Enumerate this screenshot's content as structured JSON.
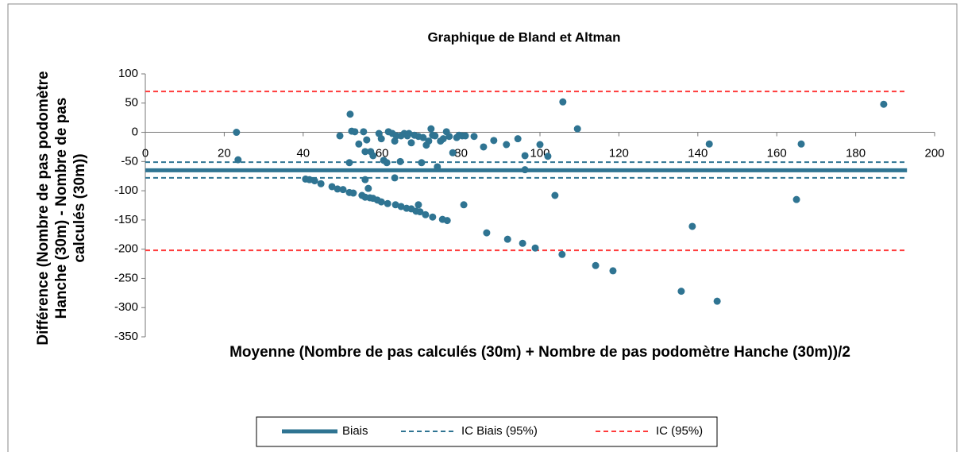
{
  "chart_data": {
    "type": "scatter",
    "title": "Graphique de Bland et Altman",
    "xlabel": "Moyenne (Nombre de pas calculés (30m) + Nombre de pas podomètre Hanche (30m))/2",
    "ylabel": "Différence (Nombre de pas podomètre Hanche (30m) - Nombre de pas calculés (30m))",
    "xlim": [
      0,
      200
    ],
    "xticks": [
      0,
      20,
      40,
      60,
      80,
      100,
      120,
      140,
      160,
      180,
      200
    ],
    "ylim": [
      -350,
      100
    ],
    "yticks": [
      -350,
      -300,
      -250,
      -200,
      -150,
      -100,
      -50,
      0,
      50,
      100
    ],
    "points": {
      "color": "#2f7492",
      "x": [
        23.1,
        23.5,
        51.9,
        51.7,
        49.3,
        52.3,
        53.1,
        54.1,
        55.3,
        56.1,
        55.7,
        57.1,
        57.7,
        59.2,
        59.8,
        60.4,
        61.2,
        61.6,
        62.6,
        63.2,
        63.6,
        63.2,
        64.6,
        64.8,
        65.6,
        66.4,
        66.8,
        67.4,
        68.2,
        69.2,
        70,
        70.4,
        71.2,
        71.8,
        72.4,
        72.8,
        73.4,
        74,
        74.8,
        75.5,
        76.3,
        77,
        77.9,
        78.9,
        79.5,
        80.3,
        81.1,
        83.3,
        85.7,
        88.3,
        91.5,
        94.4,
        96.2,
        96.2,
        100,
        102,
        103.8,
        105.8,
        109.5,
        40.6,
        41.6,
        42.9,
        44.5,
        47.3,
        48.7,
        50.1,
        51.7,
        52.7,
        54.9,
        55.7,
        56.9,
        57.7,
        58.8,
        59.8,
        61.4,
        63.4,
        64.8,
        66.2,
        67.4,
        68.6,
        69.6,
        69.2,
        71,
        72.8,
        75.3,
        76.5,
        56.5,
        55.7,
        80.7,
        86.5,
        91.8,
        95.6,
        98.8,
        105.6,
        114.1,
        118.5,
        142.9,
        166.2,
        165,
        138.6,
        135.8,
        144.9,
        187.1
      ],
      "y": [
        0,
        -47,
        31,
        -52,
        -6,
        2,
        1,
        -20,
        1,
        -13,
        -33,
        -33,
        -40,
        -2,
        -11,
        -48,
        -52,
        1,
        -2,
        -15,
        -6,
        -78,
        -50,
        -6,
        -2,
        -6,
        -2,
        -18,
        -5,
        -7,
        -52,
        -9,
        -22,
        -15,
        6,
        -5,
        -6,
        -59,
        -15,
        -11,
        1,
        -7,
        -35,
        -9,
        -5,
        -6,
        -6,
        -7,
        -25,
        -14,
        -21,
        -11,
        -40,
        -64,
        -21,
        -41,
        -108,
        52,
        6,
        -80,
        -81,
        -83,
        -88,
        -93,
        -97,
        -98,
        -103,
        -104,
        -108,
        -111,
        -112,
        -113,
        -116,
        -119,
        -122,
        -124,
        -127,
        -130,
        -131,
        -135,
        -136,
        -124,
        -141,
        -145,
        -149,
        -151,
        -96,
        -81,
        -124,
        -172,
        -183,
        -190,
        -198,
        -209,
        -228,
        -237,
        -20,
        -20,
        -115,
        -161,
        -272,
        -289,
        48
      ]
    },
    "series": [
      {
        "name": "Biais",
        "color": "#2f7492",
        "style": "solid",
        "x": [
          0,
          193
        ],
        "y": [
          -65,
          -65
        ]
      },
      {
        "name": "IC Biais (95%)",
        "color": "#2f7492",
        "style": "dashed",
        "x": [
          0,
          193
        ],
        "y": [
          -51,
          -51
        ]
      },
      {
        "name": "IC Biais (95%)",
        "color": "#2f7492",
        "style": "dashed",
        "x": [
          0,
          193
        ],
        "y": [
          -78,
          -78
        ]
      },
      {
        "name": "IC (95%)",
        "color": "#ff3b3b",
        "style": "dashed",
        "x": [
          0,
          193
        ],
        "y": [
          70,
          70
        ]
      },
      {
        "name": "IC (95%)",
        "color": "#ff3b3b",
        "style": "dashed",
        "x": [
          0,
          193
        ],
        "y": [
          -202,
          -202
        ]
      }
    ],
    "legend": [
      0,
      1,
      3
    ]
  }
}
